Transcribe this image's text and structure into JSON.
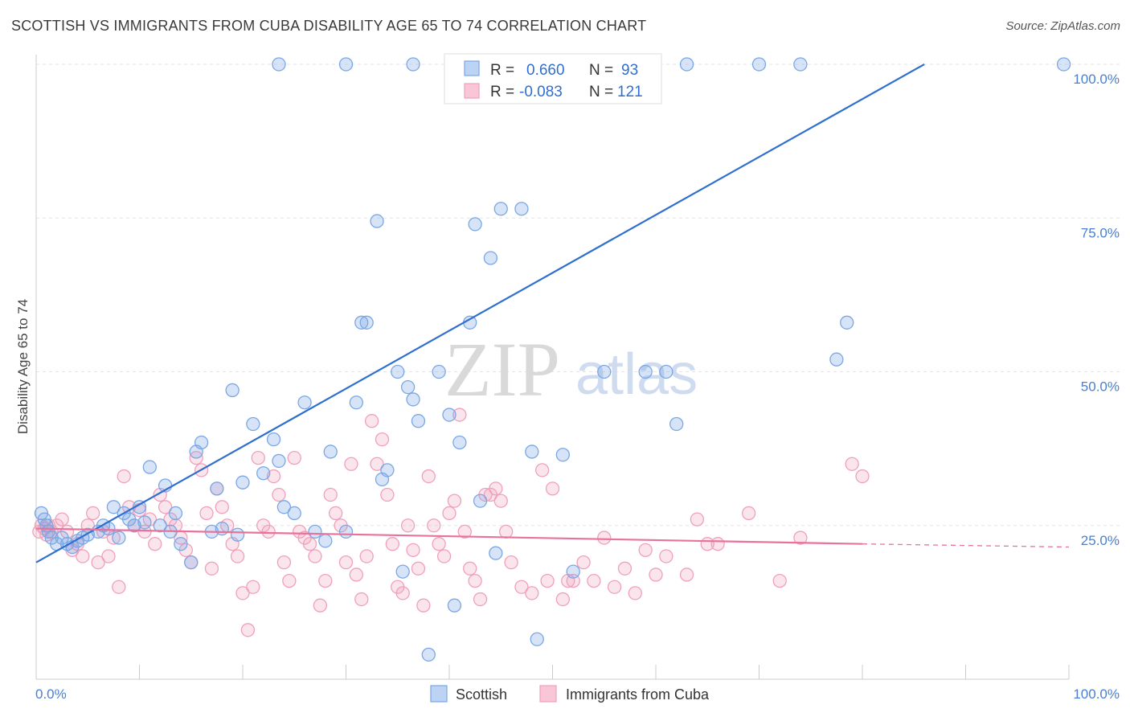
{
  "title": "SCOTTISH VS IMMIGRANTS FROM CUBA DISABILITY AGE 65 TO 74 CORRELATION CHART",
  "source": "Source: ZipAtlas.com",
  "watermark": {
    "zip": "ZIP",
    "atlas": "atlas"
  },
  "colors": {
    "scottish": "#7aa7e6",
    "scottish_line": "#2f6fcf",
    "cuba": "#f0a0bb",
    "cuba_line": "#e8729c",
    "tick_text": "#4a7fd0"
  },
  "legend": {
    "rows": [
      {
        "r_label": "R =",
        "r_value": "0.660",
        "n_label": "N =",
        "n_value": "93"
      },
      {
        "r_label": "R =",
        "r_value": "-0.083",
        "n_label": "N =",
        "n_value": "121"
      }
    ]
  },
  "chart_data": {
    "type": "scatter",
    "title": "SCOTTISH VS IMMIGRANTS FROM CUBA DISABILITY AGE 65 TO 74 CORRELATION CHART",
    "xlabel": "",
    "ylabel": "Disability Age 65 to 74",
    "xlim": [
      0,
      100
    ],
    "ylim": [
      0,
      100
    ],
    "x_tick_labels": [
      "0.0%",
      "100.0%"
    ],
    "y_tick_labels": [
      "100.0%",
      "75.0%",
      "50.0%",
      "25.0%"
    ],
    "y_ticks": [
      100,
      75,
      50,
      25
    ],
    "grid": true,
    "legend_position": "top-center",
    "series": [
      {
        "name": "Scottish",
        "color": "#7aa7e6",
        "trend": {
          "x": [
            0,
            86
          ],
          "y": [
            19,
            100
          ]
        },
        "points": [
          [
            0.5,
            27
          ],
          [
            0.8,
            26
          ],
          [
            1,
            25
          ],
          [
            1.2,
            24
          ],
          [
            1.5,
            23
          ],
          [
            2,
            22
          ],
          [
            2.5,
            23
          ],
          [
            3,
            22
          ],
          [
            3.5,
            21.5
          ],
          [
            4,
            22.5
          ],
          [
            4.5,
            23
          ],
          [
            5,
            23.5
          ],
          [
            6,
            24
          ],
          [
            6.5,
            25
          ],
          [
            7,
            24.5
          ],
          [
            7.5,
            28
          ],
          [
            8,
            23
          ],
          [
            8.5,
            27
          ],
          [
            9,
            26
          ],
          [
            9.5,
            25
          ],
          [
            10,
            28
          ],
          [
            10.5,
            25.5
          ],
          [
            11,
            34.5
          ],
          [
            12,
            25
          ],
          [
            12.5,
            31.5
          ],
          [
            13,
            24
          ],
          [
            13.5,
            27
          ],
          [
            14,
            22
          ],
          [
            15,
            19
          ],
          [
            15.5,
            37
          ],
          [
            16,
            38.5
          ],
          [
            17,
            24
          ],
          [
            17.5,
            31
          ],
          [
            18,
            24.5
          ],
          [
            19,
            47
          ],
          [
            19.5,
            23.5
          ],
          [
            20,
            32
          ],
          [
            21,
            41.5
          ],
          [
            22,
            33.5
          ],
          [
            23,
            39
          ],
          [
            23.5,
            35.5
          ],
          [
            24,
            28
          ],
          [
            25,
            27
          ],
          [
            26,
            45
          ],
          [
            27,
            24
          ],
          [
            28,
            22.5
          ],
          [
            28.5,
            37
          ],
          [
            30,
            24
          ],
          [
            31,
            45
          ],
          [
            31.5,
            58
          ],
          [
            32,
            58
          ],
          [
            33,
            74.5
          ],
          [
            33.5,
            32.5
          ],
          [
            34,
            34
          ],
          [
            35,
            50
          ],
          [
            35.5,
            17.5
          ],
          [
            36,
            47.5
          ],
          [
            36.5,
            45.5
          ],
          [
            37,
            42
          ],
          [
            38,
            4
          ],
          [
            39,
            50
          ],
          [
            40,
            43
          ],
          [
            40.5,
            12
          ],
          [
            41,
            38.5
          ],
          [
            42,
            58
          ],
          [
            42.5,
            74
          ],
          [
            43,
            29
          ],
          [
            44,
            68.5
          ],
          [
            44.5,
            20.5
          ],
          [
            45,
            76.5
          ],
          [
            47,
            76.5
          ],
          [
            48,
            37
          ],
          [
            48.5,
            6.5
          ],
          [
            51,
            36.5
          ],
          [
            52,
            17.5
          ],
          [
            55,
            50
          ],
          [
            59,
            50
          ],
          [
            61,
            50
          ],
          [
            62,
            41.5
          ],
          [
            77.5,
            52
          ],
          [
            78.5,
            58
          ],
          [
            23.5,
            100
          ],
          [
            30,
            100
          ],
          [
            36.5,
            100
          ],
          [
            43,
            100
          ],
          [
            50,
            100
          ],
          [
            57,
            100
          ],
          [
            63,
            100
          ],
          [
            70,
            100
          ],
          [
            74,
            100
          ],
          [
            99.5,
            100
          ]
        ]
      },
      {
        "name": "Immigrants from Cuba",
        "color": "#f0a0bb",
        "trend": {
          "x": [
            0,
            80
          ],
          "y": [
            24.5,
            22
          ]
        },
        "trend_dashed": {
          "x": [
            80,
            100
          ],
          "y": [
            22,
            21.5
          ]
        },
        "points": [
          [
            0.3,
            24
          ],
          [
            0.5,
            25
          ],
          [
            0.8,
            24.5
          ],
          [
            1,
            23.5
          ],
          [
            1.2,
            25
          ],
          [
            1.5,
            24
          ],
          [
            2,
            25
          ],
          [
            2.5,
            26
          ],
          [
            3,
            24
          ],
          [
            3.5,
            21
          ],
          [
            4,
            22
          ],
          [
            4.5,
            20
          ],
          [
            5,
            25
          ],
          [
            5.5,
            27
          ],
          [
            6,
            19
          ],
          [
            6.5,
            24
          ],
          [
            7,
            20
          ],
          [
            7.5,
            23
          ],
          [
            8,
            15
          ],
          [
            8.5,
            33
          ],
          [
            9,
            28
          ],
          [
            9.5,
            25
          ],
          [
            10,
            27.5
          ],
          [
            10.5,
            24
          ],
          [
            11,
            26
          ],
          [
            11.5,
            22
          ],
          [
            12,
            30
          ],
          [
            12.5,
            28
          ],
          [
            13,
            26
          ],
          [
            13.5,
            25
          ],
          [
            14,
            23
          ],
          [
            14.5,
            21
          ],
          [
            15,
            19
          ],
          [
            15.5,
            36
          ],
          [
            16,
            34
          ],
          [
            16.5,
            27
          ],
          [
            17,
            18
          ],
          [
            17.5,
            31
          ],
          [
            18,
            28
          ],
          [
            18.5,
            25
          ],
          [
            19,
            22
          ],
          [
            19.5,
            20
          ],
          [
            20,
            14
          ],
          [
            20.5,
            8
          ],
          [
            21,
            15
          ],
          [
            21.5,
            36
          ],
          [
            22,
            25
          ],
          [
            22.5,
            24
          ],
          [
            23,
            33
          ],
          [
            23.5,
            30
          ],
          [
            24,
            19
          ],
          [
            24.5,
            16
          ],
          [
            25,
            36
          ],
          [
            25.5,
            24
          ],
          [
            26,
            23
          ],
          [
            26.5,
            22
          ],
          [
            27,
            20
          ],
          [
            27.5,
            12
          ],
          [
            28,
            16
          ],
          [
            28.5,
            30
          ],
          [
            29,
            27
          ],
          [
            29.5,
            25
          ],
          [
            30,
            19
          ],
          [
            30.5,
            35
          ],
          [
            31,
            17
          ],
          [
            31.5,
            13
          ],
          [
            32,
            20
          ],
          [
            32.5,
            42
          ],
          [
            33,
            35
          ],
          [
            33.5,
            39
          ],
          [
            34,
            30
          ],
          [
            34.5,
            22
          ],
          [
            35,
            15
          ],
          [
            35.5,
            14
          ],
          [
            36,
            25
          ],
          [
            36.5,
            21
          ],
          [
            37,
            18
          ],
          [
            37.5,
            12
          ],
          [
            38,
            33
          ],
          [
            38.5,
            25
          ],
          [
            39,
            22
          ],
          [
            39.5,
            20
          ],
          [
            40,
            27
          ],
          [
            40.5,
            29
          ],
          [
            41,
            43
          ],
          [
            41.5,
            24
          ],
          [
            42,
            18
          ],
          [
            42.5,
            16
          ],
          [
            43,
            13
          ],
          [
            43.5,
            30
          ],
          [
            44,
            30
          ],
          [
            44.5,
            31
          ],
          [
            45,
            29
          ],
          [
            45.5,
            24
          ],
          [
            46,
            19
          ],
          [
            47,
            15
          ],
          [
            48,
            14
          ],
          [
            49,
            34
          ],
          [
            49.5,
            16
          ],
          [
            50,
            31
          ],
          [
            51,
            13
          ],
          [
            51.5,
            16
          ],
          [
            52,
            16
          ],
          [
            53,
            19
          ],
          [
            54,
            16
          ],
          [
            55,
            23
          ],
          [
            56,
            15
          ],
          [
            57,
            18
          ],
          [
            58,
            14
          ],
          [
            59,
            21
          ],
          [
            60,
            17
          ],
          [
            61,
            20
          ],
          [
            63,
            17
          ],
          [
            64,
            26
          ],
          [
            65,
            22
          ],
          [
            66,
            22
          ],
          [
            69,
            27
          ],
          [
            72,
            16
          ],
          [
            74,
            23
          ],
          [
            79,
            35
          ],
          [
            80,
            33
          ]
        ]
      }
    ]
  }
}
